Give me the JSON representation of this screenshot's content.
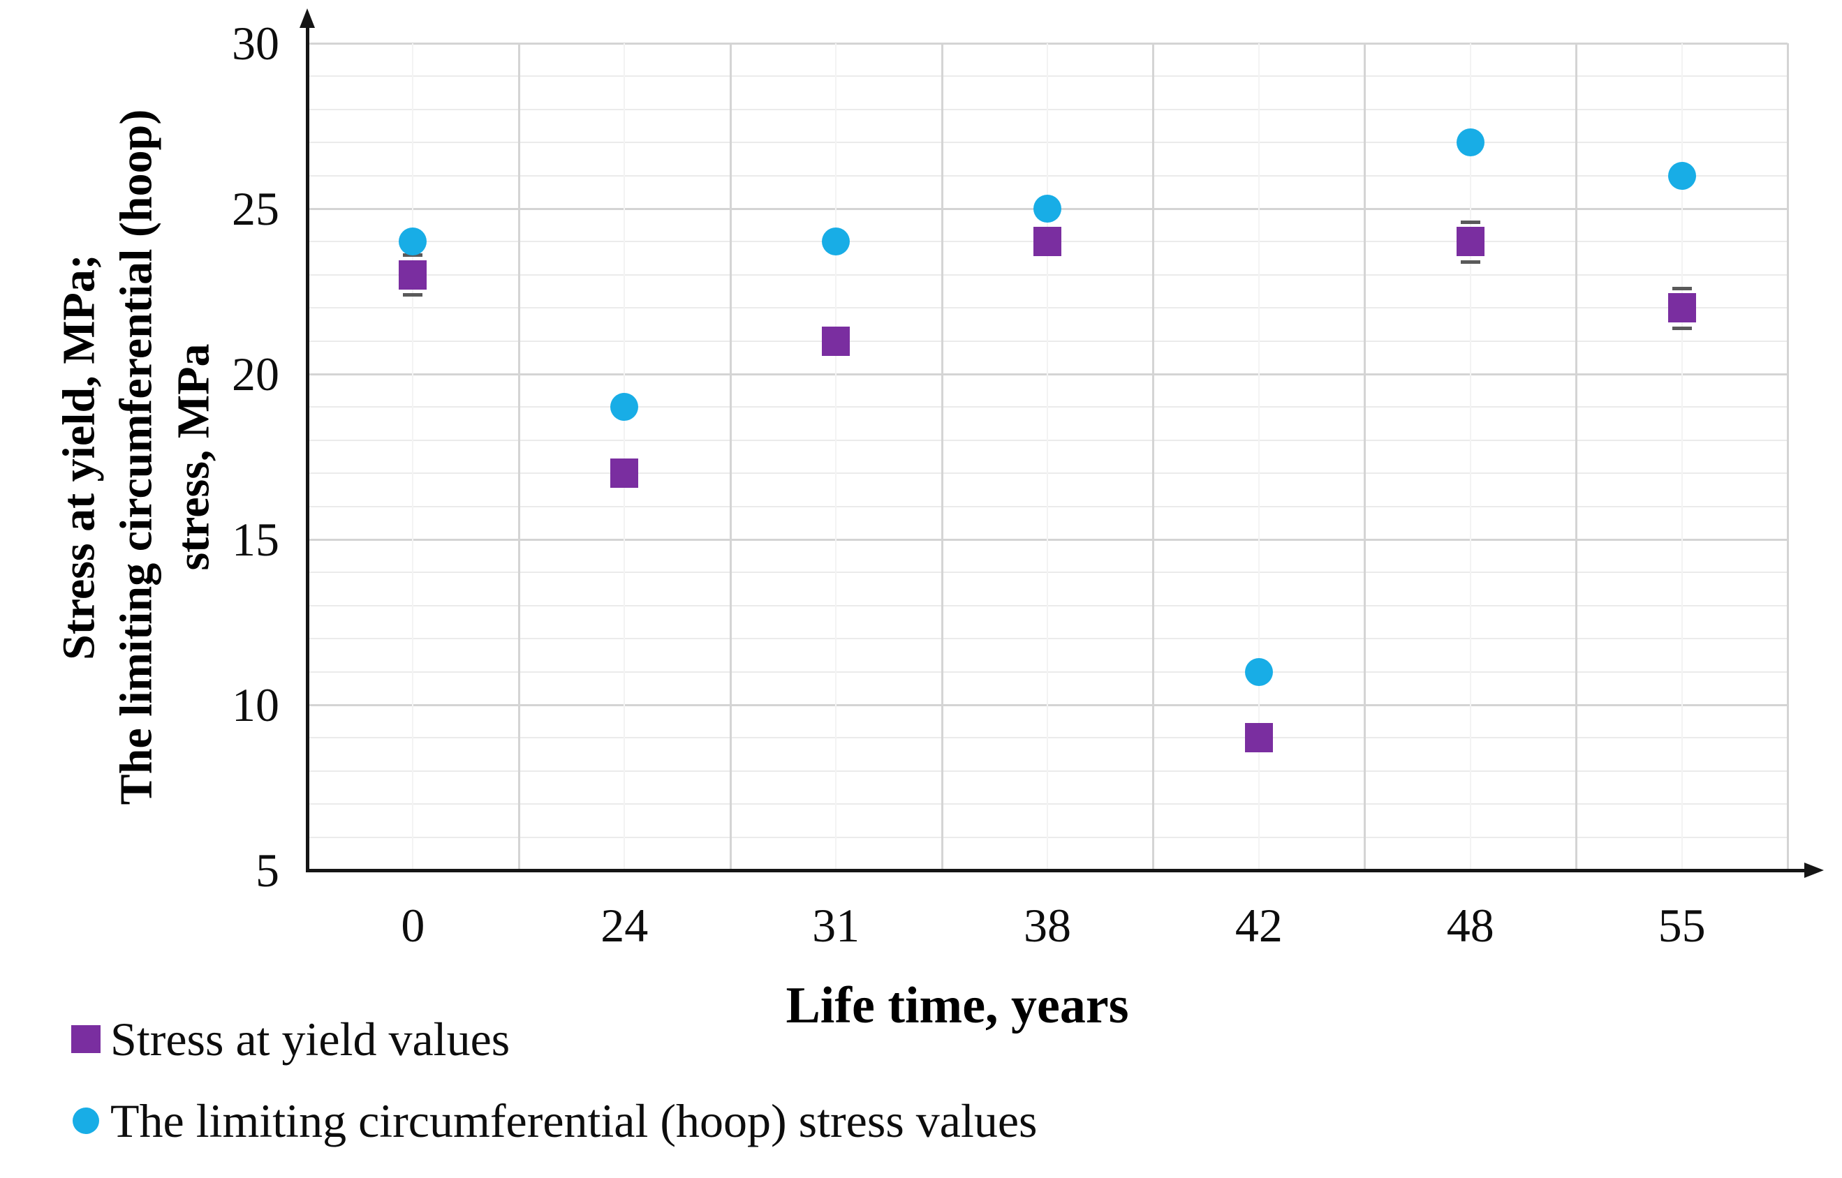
{
  "chart_data": {
    "type": "scatter",
    "categories": [
      "0",
      "24",
      "31",
      "38",
      "42",
      "48",
      "55"
    ],
    "series": [
      {
        "name": "Stress at yield values",
        "marker": "square",
        "color": "#7A2EA0",
        "values": [
          23,
          17,
          21,
          24,
          9,
          24,
          22
        ],
        "error_bars": [
          0.6,
          0,
          0,
          0,
          0,
          0.6,
          0.6
        ]
      },
      {
        "name": "The limiting circumferential (hoop) stress values",
        "marker": "circle",
        "color": "#18ADE6",
        "values": [
          24,
          19,
          24,
          25,
          11,
          27,
          26
        ]
      }
    ],
    "xlabel": "Life time, years",
    "ylabel_lines": [
      "Stress at yield, MPa;",
      "The limiting circumferential (hoop)",
      "stress, MPa"
    ],
    "ylim": [
      5,
      30
    ],
    "yticks": [
      "30",
      "25",
      "20",
      "15",
      "10",
      "5"
    ],
    "ymajor_step": 5,
    "yminor_step": 1,
    "grid": {
      "h_major": true,
      "h_minor": true,
      "v_major": true,
      "v_minor": true
    },
    "legend_position": "bottom-left"
  },
  "legend": {
    "items": [
      {
        "label": "Stress at yield values",
        "marker": "square"
      },
      {
        "label": "The limiting circumferential (hoop) stress values",
        "marker": "circle"
      }
    ]
  },
  "colors": {
    "series_yield": "#7A2EA0",
    "series_hoop": "#18ADE6",
    "axis": "#151515",
    "grid_major": "#D4D4D4",
    "grid_minor": "#EBEBEB",
    "grid_vcenter": "#F3F3F3",
    "error_bar": "#5A5A5A",
    "background": "#FFFFFF"
  }
}
